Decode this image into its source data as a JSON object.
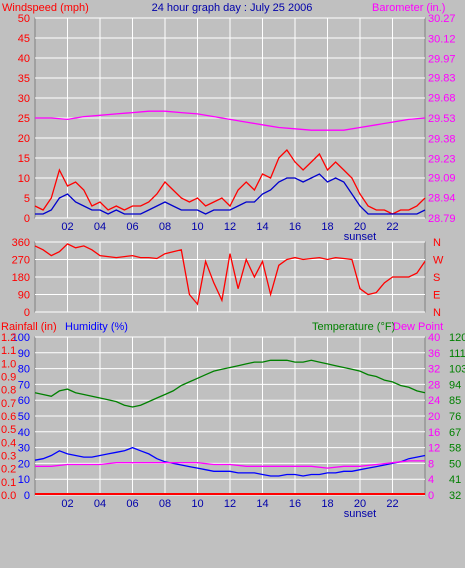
{
  "title": "24 hour graph day : July 25 2006",
  "colors": {
    "background": "#c0c0c0",
    "grid": "#ffffff",
    "wind": "#ff0000",
    "gust": "#ff0000",
    "avgwind": "#0000cc",
    "barometer": "#ff00ff",
    "direction": "#ff0000",
    "rainfall": "#ff0000",
    "humidity": "#0000ff",
    "temperature": "#008000",
    "dewpoint": "#ff00ff",
    "sunset": "#0000aa"
  },
  "x_ticks": [
    "02",
    "04",
    "06",
    "08",
    "10",
    "12",
    "14",
    "16",
    "18",
    "20",
    "22"
  ],
  "sunset_label": "sunset",
  "chart_data": [
    {
      "type": "line",
      "panel": "wind",
      "title": "24 hour graph day : July 25 2006",
      "ylabel_left": "Windspeed (mph)",
      "ylabel_right": "Barometer (in.)",
      "left_ticks": [
        "0",
        "2.5",
        "5",
        "7.5",
        "10",
        "12.5",
        "15",
        "17.5",
        "20",
        "22.5",
        "25",
        "27.5",
        "30",
        "32.5",
        "35",
        "37.5",
        "40",
        "42.5",
        "45",
        "47.5",
        "50"
      ],
      "right_ticks": [
        "28.79",
        "28.94",
        "29.09",
        "29.23",
        "29.38",
        "29.53",
        "29.68",
        "29.83",
        "29.97",
        "30.12",
        "30.27"
      ],
      "ylim": [
        0,
        50
      ],
      "y2lim": [
        28.79,
        30.27
      ],
      "x_hours": [
        0,
        24
      ],
      "series": [
        {
          "key": "gust",
          "x": [
            0.0,
            0.5,
            1.0,
            1.5,
            2.0,
            2.5,
            3.0,
            3.5,
            4.0,
            4.5,
            5.0,
            5.5,
            6.0,
            6.5,
            7.0,
            7.5,
            8.0,
            8.5,
            9.0,
            9.5,
            10.0,
            10.5,
            11.0,
            11.5,
            12.0,
            12.5,
            13.0,
            13.5,
            14.0,
            14.5,
            15.0,
            15.5,
            16.0,
            16.5,
            17.0,
            17.5,
            18.0,
            18.5,
            19.0,
            19.5,
            20.0,
            20.5,
            21.0,
            21.5,
            22.0,
            22.5,
            23.0,
            23.5,
            24.0
          ],
          "values": [
            3,
            2,
            5,
            12,
            8,
            9,
            7,
            3,
            4,
            2,
            3,
            2,
            3,
            3,
            4,
            6,
            9,
            7,
            5,
            4,
            5,
            3,
            4,
            5,
            3,
            7,
            9,
            7,
            11,
            10,
            15,
            17,
            14,
            12,
            14,
            16,
            12,
            14,
            12,
            10,
            6,
            3,
            2,
            2,
            1,
            2,
            2,
            3,
            5
          ]
        },
        {
          "key": "avgwind",
          "x": [
            0.0,
            0.5,
            1.0,
            1.5,
            2.0,
            2.5,
            3.0,
            3.5,
            4.0,
            4.5,
            5.0,
            5.5,
            6.0,
            6.5,
            7.0,
            7.5,
            8.0,
            8.5,
            9.0,
            9.5,
            10.0,
            10.5,
            11.0,
            11.5,
            12.0,
            12.5,
            13.0,
            13.5,
            14.0,
            14.5,
            15.0,
            15.5,
            16.0,
            16.5,
            17.0,
            17.5,
            18.0,
            18.5,
            19.0,
            19.5,
            20.0,
            20.5,
            21.0,
            21.5,
            22.0,
            22.5,
            23.0,
            23.5,
            24.0
          ],
          "values": [
            1,
            1,
            2,
            5,
            6,
            4,
            3,
            2,
            2,
            1,
            2,
            1,
            1,
            1,
            2,
            3,
            4,
            3,
            2,
            2,
            2,
            1,
            2,
            2,
            2,
            3,
            4,
            4,
            6,
            7,
            9,
            10,
            10,
            9,
            10,
            11,
            9,
            10,
            9,
            6,
            3,
            1,
            1,
            1,
            1,
            1,
            1,
            1,
            2
          ]
        },
        {
          "key": "barometer",
          "axis": "right",
          "x": [
            0,
            1,
            2,
            3,
            4,
            5,
            6,
            7,
            8,
            9,
            10,
            11,
            12,
            13,
            14,
            15,
            16,
            17,
            18,
            19,
            20,
            21,
            22,
            23,
            24
          ],
          "values": [
            29.53,
            29.53,
            29.52,
            29.54,
            29.55,
            29.56,
            29.57,
            29.58,
            29.58,
            29.57,
            29.56,
            29.54,
            29.52,
            29.5,
            29.48,
            29.46,
            29.45,
            29.44,
            29.44,
            29.44,
            29.46,
            29.48,
            29.5,
            29.52,
            29.53
          ]
        }
      ]
    },
    {
      "type": "line",
      "panel": "direction",
      "left_ticks": [
        "0",
        "90",
        "180",
        "270",
        "360"
      ],
      "right_ticks": [
        "N",
        "E",
        "S",
        "W",
        "N"
      ],
      "ylim": [
        0,
        360
      ],
      "x_hours": [
        0,
        24
      ],
      "series": [
        {
          "key": "direction",
          "x": [
            0,
            0.5,
            1,
            1.5,
            2,
            2.5,
            3,
            3.5,
            4,
            4.5,
            5,
            5.5,
            6,
            6.5,
            7,
            7.5,
            8,
            8.5,
            9,
            9.5,
            10,
            10.5,
            11,
            11.5,
            12,
            12.5,
            13,
            13.5,
            14,
            14.5,
            15,
            15.5,
            16,
            16.5,
            17,
            17.5,
            18,
            18.5,
            19,
            19.5,
            20,
            20.5,
            21,
            21.5,
            22,
            22.5,
            23,
            23.5,
            24
          ],
          "values": [
            340,
            320,
            290,
            310,
            350,
            330,
            340,
            320,
            290,
            285,
            280,
            285,
            290,
            280,
            280,
            275,
            300,
            310,
            320,
            90,
            40,
            260,
            150,
            60,
            300,
            120,
            270,
            180,
            260,
            90,
            240,
            270,
            280,
            270,
            275,
            280,
            270,
            280,
            275,
            270,
            120,
            90,
            100,
            150,
            180,
            180,
            180,
            200,
            260
          ]
        }
      ]
    },
    {
      "type": "line",
      "panel": "climate",
      "ylabel_rain": "Rainfall (in)",
      "ylabel_humidity": "Humidity (%)",
      "ylabel_temp": "Temperature (°F)",
      "ylabel_dew": "Dew Point",
      "rain_ticks": [
        "0.0",
        "0.1",
        "0.2",
        "0.3",
        "0.4",
        "0.5",
        "0.6",
        "0.7",
        "0.8",
        "0.9",
        "1.0",
        "1.1",
        "1.2"
      ],
      "hum_ticks": [
        "0",
        "10",
        "20",
        "30",
        "40",
        "50",
        "60",
        "70",
        "80",
        "90",
        "100"
      ],
      "temp_ticks": [
        "32",
        "41",
        "50",
        "58",
        "67",
        "76",
        "85",
        "94",
        "103",
        "111",
        "120"
      ],
      "dew_ticks": [
        "0",
        "4",
        "8",
        "12",
        "16",
        "20",
        "24",
        "28",
        "32",
        "36",
        "40"
      ],
      "ylim_humidity": [
        0,
        100
      ],
      "ylim_temperature": [
        32,
        120
      ],
      "x_hours": [
        0,
        24
      ],
      "series": [
        {
          "key": "temperature",
          "axis": "temperature",
          "x": [
            0,
            0.5,
            1,
            1.5,
            2,
            2.5,
            3,
            3.5,
            4,
            4.5,
            5,
            5.5,
            6,
            6.5,
            7,
            7.5,
            8,
            8.5,
            9,
            9.5,
            10,
            10.5,
            11,
            11.5,
            12,
            12.5,
            13,
            13.5,
            14,
            14.5,
            15,
            15.5,
            16,
            16.5,
            17,
            17.5,
            18,
            18.5,
            19,
            19.5,
            20,
            20.5,
            21,
            21.5,
            22,
            22.5,
            23,
            23.5,
            24
          ],
          "values": [
            89,
            88,
            87,
            90,
            91,
            89,
            88,
            87,
            86,
            85,
            84,
            82,
            81,
            82,
            84,
            86,
            88,
            90,
            93,
            95,
            97,
            99,
            101,
            102,
            103,
            104,
            105,
            106,
            106,
            107,
            107,
            107,
            106,
            106,
            107,
            106,
            105,
            104,
            103,
            102,
            101,
            99,
            98,
            96,
            95,
            93,
            92,
            90,
            89
          ]
        },
        {
          "key": "humidity",
          "axis": "humidity",
          "x": [
            0,
            0.5,
            1,
            1.5,
            2,
            2.5,
            3,
            3.5,
            4,
            4.5,
            5,
            5.5,
            6,
            6.5,
            7,
            7.5,
            8,
            8.5,
            9,
            9.5,
            10,
            10.5,
            11,
            11.5,
            12,
            12.5,
            13,
            13.5,
            14,
            14.5,
            15,
            15.5,
            16,
            16.5,
            17,
            17.5,
            18,
            18.5,
            19,
            19.5,
            20,
            20.5,
            21,
            21.5,
            22,
            22.5,
            23,
            23.5,
            24
          ],
          "values": [
            22,
            23,
            25,
            28,
            26,
            25,
            24,
            24,
            25,
            26,
            27,
            28,
            30,
            28,
            26,
            23,
            21,
            20,
            19,
            18,
            17,
            16,
            15,
            15,
            15,
            14,
            14,
            14,
            13,
            12,
            12,
            13,
            13,
            12,
            13,
            13,
            14,
            14,
            15,
            15,
            16,
            17,
            18,
            19,
            20,
            21,
            23,
            24,
            25
          ]
        },
        {
          "key": "dewpoint",
          "axis": "temperature",
          "x": [
            0,
            1,
            2,
            3,
            4,
            5,
            6,
            7,
            8,
            9,
            10,
            11,
            12,
            13,
            14,
            15,
            16,
            17,
            18,
            19,
            20,
            21,
            22,
            23,
            24
          ],
          "values": [
            48,
            48,
            49,
            49,
            49,
            50,
            50,
            50,
            50,
            50,
            50,
            49,
            49,
            48,
            48,
            48,
            48,
            48,
            47,
            48,
            48,
            49,
            50,
            51,
            51
          ]
        },
        {
          "key": "rainfall",
          "axis": "rain",
          "x": [
            0,
            24
          ],
          "values": [
            0.0,
            0.0
          ]
        }
      ]
    }
  ]
}
